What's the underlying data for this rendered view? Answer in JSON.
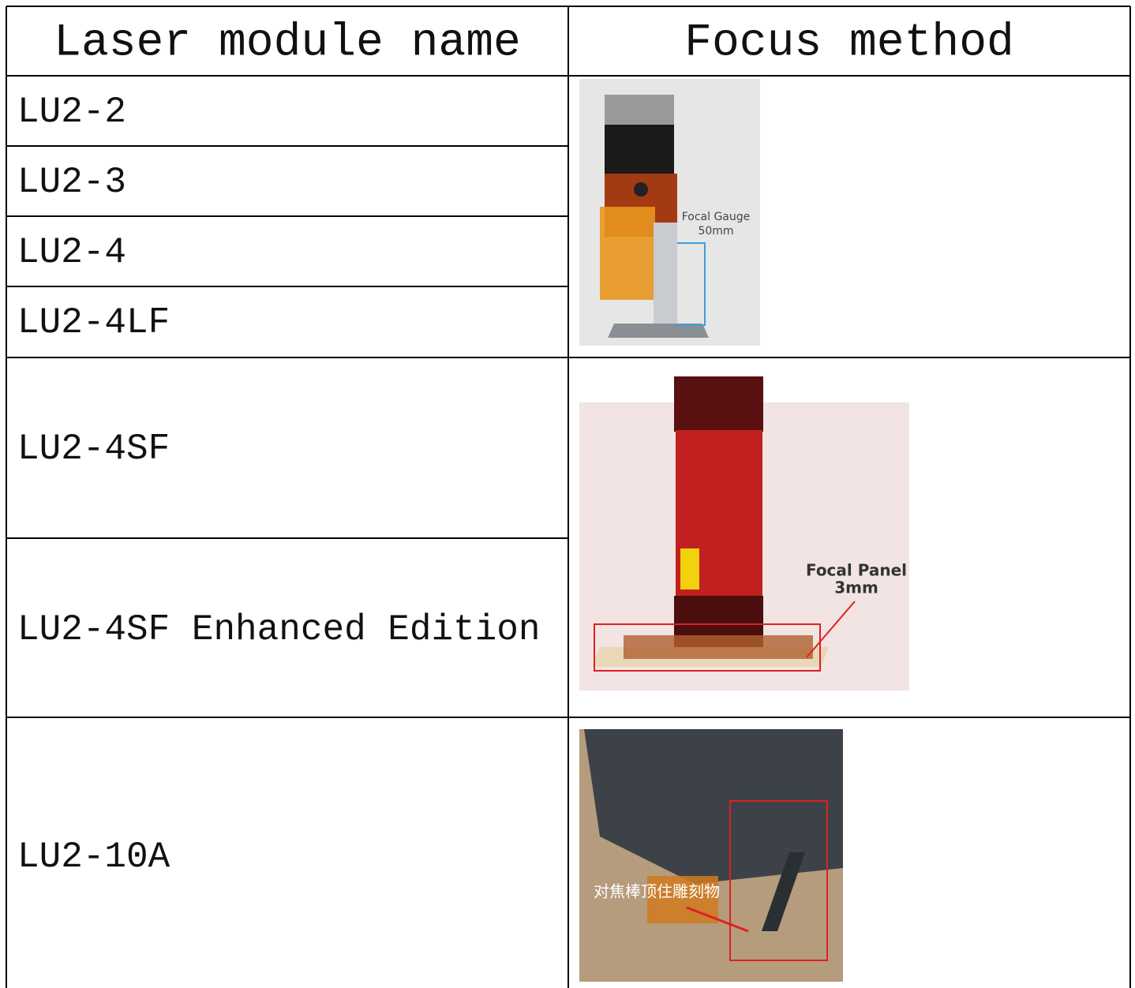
{
  "table": {
    "header": [
      "Laser module name",
      "Focus method"
    ],
    "rows": [
      "LU2-2",
      "LU2-3",
      "LU2-4",
      "LU2-4LF",
      "LU2-4SF",
      "LU2-4SF Enhanced Edition",
      "LU2-10A"
    ]
  },
  "images": [
    {
      "labels": [
        "Focal Gauge",
        "50mm"
      ]
    },
    {
      "labels": [
        "Focal Panel",
        "3mm"
      ]
    },
    {
      "labels": [
        "对焦棒顶住雕刻物"
      ]
    }
  ]
}
